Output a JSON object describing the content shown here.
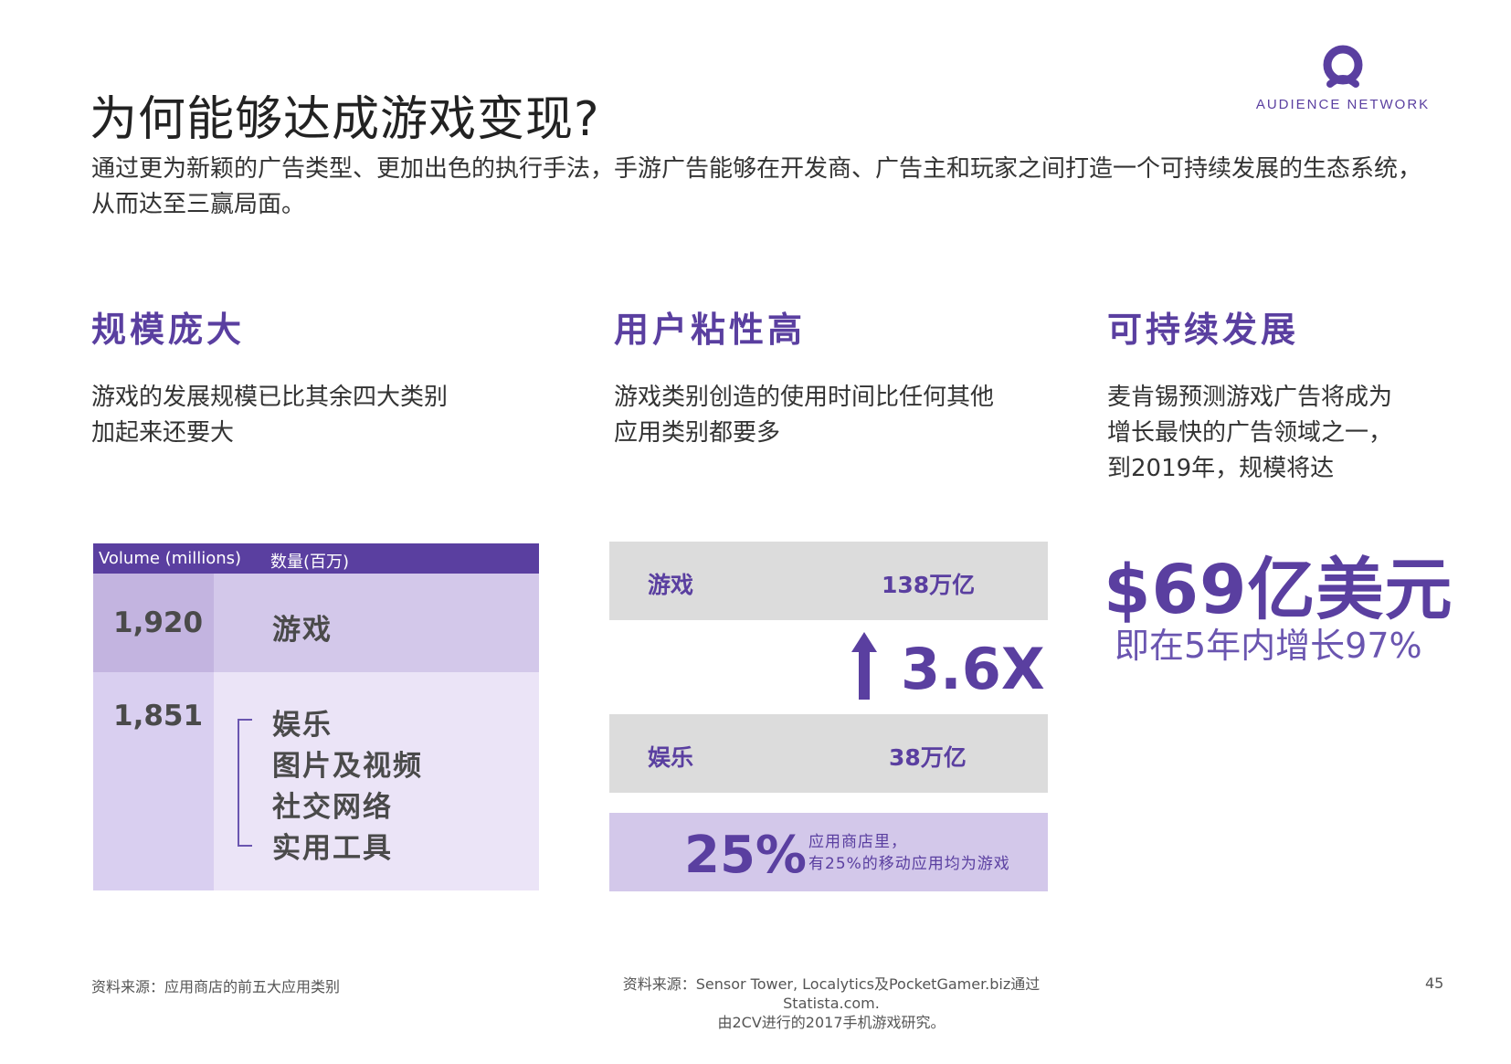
{
  "logo": {
    "text": "AUDIENCE NETWORK",
    "icon": "audience-network-logo-icon",
    "color": "#5a3fa0"
  },
  "title": "为何能够达成游戏变现?",
  "intro": "通过更为新颖的广告类型、更加出色的执行手法，手游广告能够在开发商、广告主和玩家之间打造一个可持续发展的生态系统，从而达至三赢局面。",
  "columns": [
    {
      "title": "规模庞大",
      "desc_lines": [
        "游戏的发展规模已比其余四大类别",
        "加起来还要大"
      ]
    },
    {
      "title": "用户粘性高",
      "desc_lines": [
        "游戏类别创造的使用时间比任何其他",
        "应用类别都要多"
      ]
    },
    {
      "title": "可持续发展",
      "desc_lines": [
        "麦肯锡预测游戏广告将成为",
        "增长最快的广告领域之一，",
        "到2019年，规模将达"
      ]
    }
  ],
  "volume_table": {
    "header": [
      "Volume (millions)",
      "数量(百万)"
    ],
    "rows": [
      {
        "value": "1,920",
        "categories": [
          "游戏"
        ]
      },
      {
        "value": "1,851",
        "categories": [
          "娱乐",
          "图片及视频",
          "社交网络",
          "实用工具"
        ]
      }
    ]
  },
  "usage": {
    "bars": [
      {
        "label": "游戏",
        "value": "138万亿"
      },
      {
        "label": "娱乐",
        "value": "38万亿"
      }
    ],
    "multiplier": "3.6X",
    "arrow_icon": "up-arrow-icon",
    "share_value": "25%",
    "share_note": [
      "应用商店里，",
      "有25%的移动应用均为游戏"
    ]
  },
  "forecast": {
    "amount": "$69亿美元",
    "sub": "即在5年内增长97%"
  },
  "sources": {
    "left": "资料来源：应用商店的前五大应用类别",
    "middle": [
      "资料来源：Sensor Tower, Localytics及PocketGamer.biz通过Statista.com.",
      "由2CV进行的2017手机游戏研究。"
    ]
  },
  "page_number": "45",
  "colors": {
    "accent": "#5a3fa0",
    "light_purple": "#d3c8ea",
    "pale_purple": "#ebe4f7",
    "gray_bar": "#dcdcdc"
  }
}
